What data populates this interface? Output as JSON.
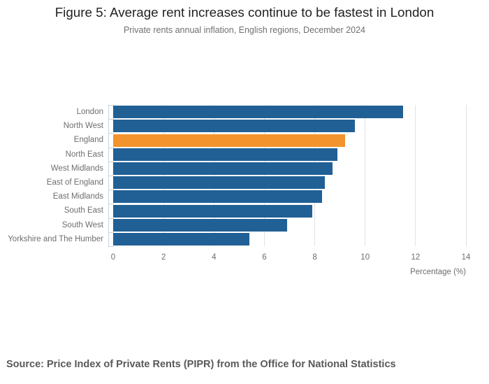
{
  "title": "Figure 5: Average rent increases continue to be fastest in London",
  "subtitle": "Private rents annual inflation, English regions, December 2024",
  "source": "Source: Price Index of Private Rents (PIPR) from the Office for National Statistics",
  "chart_data": {
    "type": "bar",
    "orientation": "horizontal",
    "title": "Figure 5: Average rent increases continue to be fastest in London",
    "subtitle": "Private rents annual inflation, English regions, December 2024",
    "categories": [
      "London",
      "North West",
      "England",
      "North East",
      "West Midlands",
      "East of England",
      "East Midlands",
      "South East",
      "South West",
      "Yorkshire and The Humber"
    ],
    "values": [
      11.5,
      9.6,
      9.2,
      8.9,
      8.7,
      8.4,
      8.3,
      7.9,
      6.9,
      5.4
    ],
    "xlabel": "Percentage (%)",
    "xlim": [
      0,
      14
    ],
    "xticks": [
      0,
      2,
      4,
      6,
      8,
      10,
      12,
      14
    ],
    "grid": true,
    "legend": false,
    "bar_color": "#206095",
    "highlight_category": "England",
    "highlight_color": "#f3932d"
  },
  "colors": {
    "title_text": "#222222",
    "subtitle_text": "#707070",
    "axis_text": "#6e6e6e",
    "gridline": "#e2e2e2",
    "axis_line": "#c9d2de",
    "source_text": "#595959"
  }
}
